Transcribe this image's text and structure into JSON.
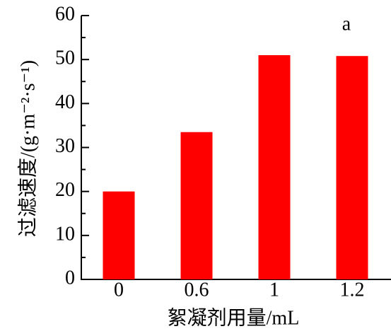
{
  "chart_data": {
    "type": "bar",
    "annotation": "a",
    "x_label": "絮凝剂用量/mL",
    "y_label": "过滤速度/(g·m⁻²·s⁻¹)",
    "categories": [
      "0",
      "0.6",
      "1",
      "1.2"
    ],
    "values": [
      20,
      33.5,
      51,
      50.8
    ],
    "color": "#ff0000",
    "ylim": [
      0,
      60
    ],
    "yticks": [
      0,
      10,
      20,
      30,
      40,
      50,
      60
    ],
    "yminorticks": [
      5,
      15,
      25,
      35,
      45,
      55
    ]
  }
}
